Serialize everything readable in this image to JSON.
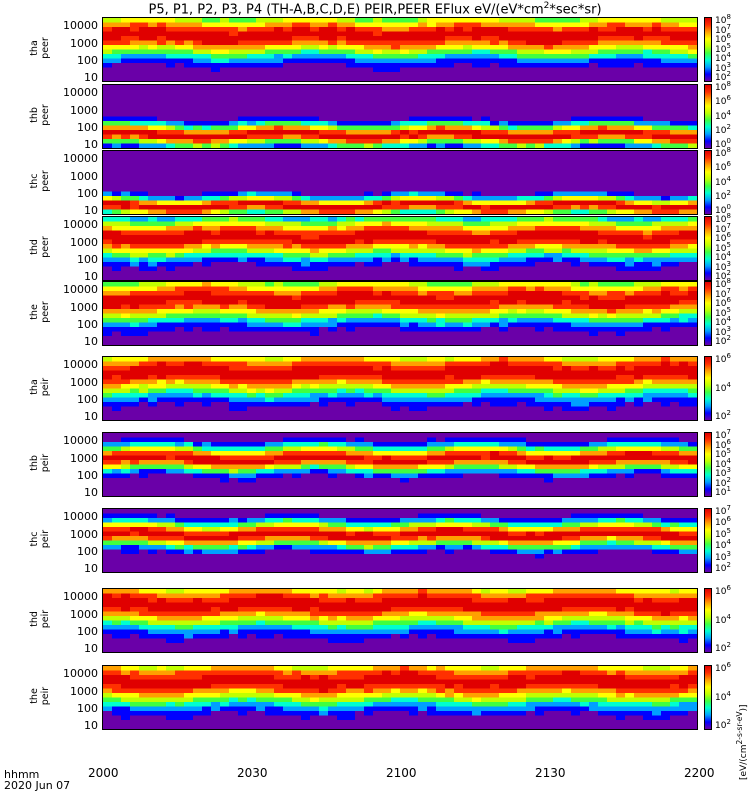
{
  "chart_data": {
    "type": "heatmap",
    "title": "P5, P1, P2, P3, P4 (TH-A,B,C,D,E) PEIR,PEER EFlux eV/(eV*cm^2*sec*sr)",
    "x_ticks": [
      "2000",
      "2030",
      "2100",
      "2130",
      "2200"
    ],
    "x_range": [
      "20:00",
      "22:00"
    ],
    "x_label_line1": "hhmm",
    "x_label_line2": "2020 Jun 07",
    "colorbar_unit": "[eV/(cm^2-s-sr-eV)]",
    "panels": [
      {
        "probe": "tha",
        "species": "peer",
        "label1": "tha",
        "label2": "peer",
        "y_ticks": [
          "10000",
          "1000",
          "100",
          "10"
        ],
        "ylog": true,
        "cbar_ticks": [
          "10^8",
          "10^7",
          "10^6",
          "10^5",
          "10^4",
          "10^3",
          "10^2"
        ],
        "peak_energy_eV": 3000,
        "spread": 1.2
      },
      {
        "probe": "thb",
        "species": "peer",
        "label1": "thb",
        "label2": "peer",
        "y_ticks": [
          "10000",
          "1000",
          "100",
          "10"
        ],
        "ylog": true,
        "cbar_ticks": [
          "10^8",
          "10^6",
          "10^4",
          "10^2",
          "10^0"
        ],
        "peak_energy_eV": 40,
        "spread": 0.6
      },
      {
        "probe": "thc",
        "species": "peer",
        "label1": "thc",
        "label2": "peer",
        "y_ticks": [
          "10000",
          "1000",
          "100",
          "10"
        ],
        "ylog": true,
        "cbar_ticks": [
          "10^8",
          "10^6",
          "10^4",
          "10^2",
          "10^0"
        ],
        "peak_energy_eV": 20,
        "spread": 0.5
      },
      {
        "probe": "thd",
        "species": "peer",
        "label1": "thd",
        "label2": "peer",
        "y_ticks": [
          "10000",
          "1000",
          "100",
          "10"
        ],
        "ylog": true,
        "cbar_ticks": [
          "10^8",
          "10^7",
          "10^6",
          "10^5",
          "10^4",
          "10^3",
          "10^2"
        ],
        "peak_energy_eV": 2000,
        "spread": 1.1
      },
      {
        "probe": "the",
        "species": "peer",
        "label1": "the",
        "label2": "peer",
        "y_ticks": [
          "10000",
          "1000",
          "100",
          "10"
        ],
        "ylog": true,
        "cbar_ticks": [
          "10^8",
          "10^7",
          "10^6",
          "10^5",
          "10^4",
          "10^3",
          "10^2"
        ],
        "peak_energy_eV": 3000,
        "spread": 1.2
      },
      {
        "probe": "tha",
        "species": "peir",
        "label1": "tha",
        "label2": "peir",
        "y_ticks": [
          "10000",
          "1000",
          "100",
          "10"
        ],
        "ylog": true,
        "cbar_ticks": [
          "10^6",
          "10^4",
          "10^2"
        ],
        "peak_energy_eV": 4000,
        "spread": 1.3
      },
      {
        "probe": "thb",
        "species": "peir",
        "label1": "thb",
        "label2": "peir",
        "y_ticks": [
          "10000",
          "1000",
          "100",
          "10"
        ],
        "ylog": true,
        "cbar_ticks": [
          "10^7",
          "10^6",
          "10^5",
          "10^4",
          "10^3",
          "10^2",
          "10^1"
        ],
        "peak_energy_eV": 1000,
        "spread": 0.7
      },
      {
        "probe": "thc",
        "species": "peir",
        "label1": "thc",
        "label2": "peir",
        "y_ticks": [
          "10000",
          "1000",
          "100",
          "10"
        ],
        "ylog": true,
        "cbar_ticks": [
          "10^7",
          "10^6",
          "10^5",
          "10^4",
          "10^3",
          "10^2"
        ],
        "peak_energy_eV": 1000,
        "spread": 0.7
      },
      {
        "probe": "thd",
        "species": "peir",
        "label1": "thd",
        "label2": "peir",
        "y_ticks": [
          "10000",
          "1000",
          "100",
          "10"
        ],
        "ylog": true,
        "cbar_ticks": [
          "10^6",
          "10^4",
          "10^2"
        ],
        "peak_energy_eV": 4000,
        "spread": 1.3
      },
      {
        "probe": "the",
        "species": "peir",
        "label1": "the",
        "label2": "peir",
        "y_ticks": [
          "10000",
          "1000",
          "100",
          "10"
        ],
        "ylog": true,
        "cbar_ticks": [
          "10^6",
          "10^4",
          "10^2"
        ],
        "peak_energy_eV": 4000,
        "spread": 1.3
      }
    ],
    "colormap": [
      "#6a00a8",
      "#0000ff",
      "#00a0ff",
      "#00ffd0",
      "#40ff40",
      "#c0ff00",
      "#ffff00",
      "#ffa000",
      "#ff3000",
      "#e00000"
    ]
  }
}
